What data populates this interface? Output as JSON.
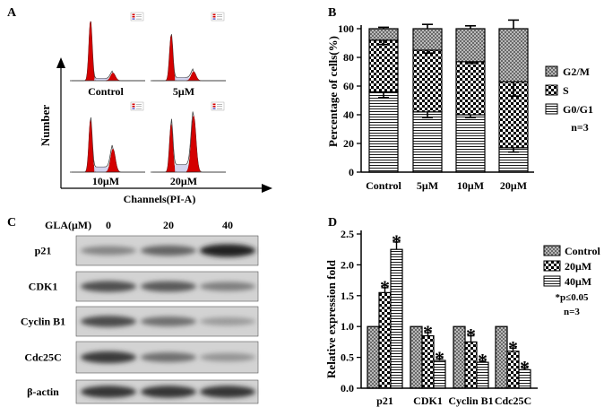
{
  "panels": {
    "a": "A",
    "b": "B",
    "c": "C",
    "d": "D"
  },
  "panel_a": {
    "ylabel": "Number",
    "xlabel": "Channels(PI-A)",
    "conditions": [
      "Control",
      "5μM",
      "10μM",
      "20μM"
    ]
  },
  "panel_c": {
    "dose_label": "GLA(μM)",
    "doses": [
      "0",
      "20",
      "40"
    ],
    "proteins": [
      "p21",
      "CDK1",
      "Cyclin B1",
      "Cdc25C",
      "β-actin"
    ],
    "band_intensity": [
      [
        0.45,
        0.6,
        0.92
      ],
      [
        0.7,
        0.65,
        0.48
      ],
      [
        0.72,
        0.55,
        0.35
      ],
      [
        0.8,
        0.55,
        0.38
      ],
      [
        0.82,
        0.82,
        0.82
      ]
    ]
  },
  "chart_data": [
    {
      "type": "bar",
      "stacked": true,
      "categories": [
        "Control",
        "5μM",
        "10μM",
        "20μM"
      ],
      "series": [
        {
          "name": "G0/G1",
          "values": [
            56,
            42,
            40,
            17
          ],
          "errors": [
            4,
            4,
            2,
            3
          ]
        },
        {
          "name": "S",
          "values": [
            36,
            43,
            37,
            46
          ],
          "errors": [
            3,
            2,
            1,
            10
          ]
        },
        {
          "name": "G2/M",
          "values": [
            8,
            15,
            23,
            37
          ],
          "errors": [
            1,
            3,
            2,
            6
          ]
        }
      ],
      "ylabel": "Percentage of cells(%)",
      "ylim": [
        0,
        100
      ],
      "yticks": [
        0,
        20,
        40,
        60,
        80,
        100
      ],
      "note": "n=3",
      "legend_position": "right"
    },
    {
      "type": "bar",
      "categories": [
        "p21",
        "CDK1",
        "Cyclin B1",
        "Cdc25C"
      ],
      "series": [
        {
          "name": "Control",
          "values": [
            1.0,
            1.0,
            1.0,
            1.0
          ],
          "errors": [
            0,
            0,
            0,
            0
          ]
        },
        {
          "name": "20μM",
          "values": [
            1.55,
            0.85,
            0.75,
            0.6
          ],
          "errors": [
            0.08,
            0.05,
            0.1,
            0.05
          ]
        },
        {
          "name": "40μM",
          "values": [
            2.25,
            0.45,
            0.42,
            0.3
          ],
          "errors": [
            0.12,
            0.03,
            0.02,
            0.03
          ]
        }
      ],
      "significance": [
        [
          false,
          true,
          true
        ],
        [
          false,
          true,
          true
        ],
        [
          false,
          true,
          true
        ],
        [
          false,
          true,
          true
        ]
      ],
      "significance_marker": "*",
      "ylabel": "Relative expression fold",
      "ylim": [
        0,
        2.5
      ],
      "yticks": [
        "0.0",
        "0.5",
        "1.0",
        "1.5",
        "2.0",
        "2.5"
      ],
      "note_p": "*p≤0.05",
      "note_n": "n=3",
      "legend_position": "top-right"
    }
  ]
}
